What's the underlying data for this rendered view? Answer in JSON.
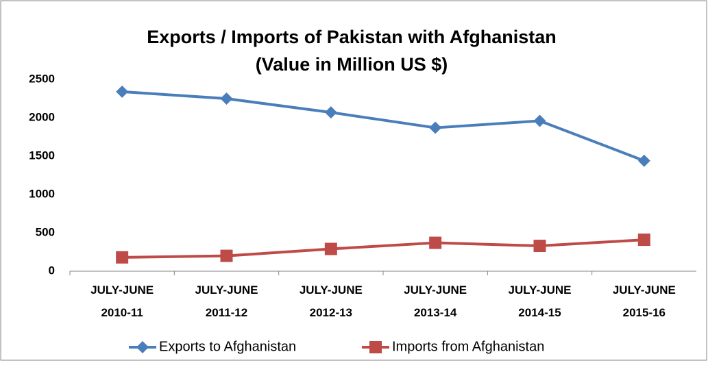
{
  "chart_data": {
    "type": "line",
    "title": "Exports / Imports of Pakistan with Afghanistan",
    "subtitle": "(Value in Million US $)",
    "categories": [
      "JULY-JUNE 2010-11",
      "JULY-JUNE 2011-12",
      "JULY-JUNE 2012-13",
      "JULY-JUNE 2013-14",
      "JULY-JUNE 2014-15",
      "JULY-JUNE 2015-16"
    ],
    "series": [
      {
        "name": "Exports to Afghanistan",
        "color": "#4a7ebb",
        "marker": "diamond",
        "values": [
          2340,
          2250,
          2070,
          1870,
          1960,
          1440
        ]
      },
      {
        "name": "Imports from Afghanistan",
        "color": "#be4b48",
        "marker": "square",
        "values": [
          180,
          200,
          290,
          370,
          330,
          410
        ]
      }
    ],
    "ylim": [
      0,
      2500
    ],
    "yticks": [
      0,
      500,
      1000,
      1500,
      2000,
      2500
    ],
    "grid": false,
    "legend": "bottom"
  }
}
